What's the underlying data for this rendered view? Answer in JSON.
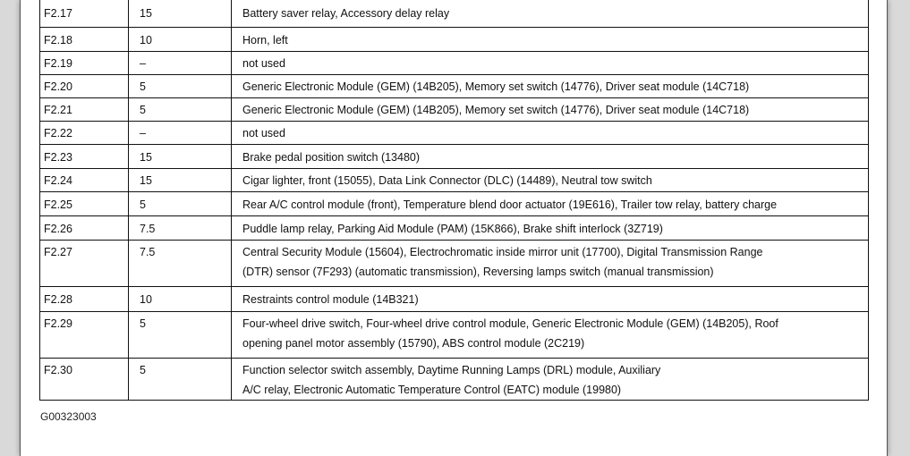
{
  "rows": [
    {
      "fuse": "F2.17",
      "amps": "15",
      "circuits": [
        "Battery saver relay, Accessory delay relay"
      ]
    },
    {
      "fuse": "F2.18",
      "amps": "10",
      "circuits": [
        "Horn, left"
      ]
    },
    {
      "fuse": "F2.19",
      "amps": "–",
      "circuits": [
        "not used"
      ]
    },
    {
      "fuse": "F2.20",
      "amps": "5",
      "circuits": [
        "Generic Electronic Module (GEM) (14B205), Memory set switch (14776), Driver seat  module (14C718)"
      ]
    },
    {
      "fuse": "F2.21",
      "amps": "5",
      "circuits": [
        "Generic Electronic Module (GEM) (14B205), Memory set switch (14776), Driver seat  module (14C718)"
      ]
    },
    {
      "fuse": "F2.22",
      "amps": "–",
      "circuits": [
        "not used"
      ]
    },
    {
      "fuse": "F2.23",
      "amps": "15",
      "circuits": [
        "Brake pedal position switch (13480)"
      ]
    },
    {
      "fuse": "F2.24",
      "amps": "15",
      "circuits": [
        "Cigar lighter, front (15055), Data Link Connector (DLC) (14489), Neutral tow switch"
      ]
    },
    {
      "fuse": "F2.25",
      "amps": "5",
      "circuits": [
        "Rear A/C control module (front), Temperature blend door actuator (19E616), Trailer  tow relay, battery charge"
      ]
    },
    {
      "fuse": "F2.26",
      "amps": "7.5",
      "circuits": [
        "Puddle lamp relay, Parking Aid Module (PAM) (15K866), Brake shift interlock (3Z719)"
      ]
    },
    {
      "fuse": "F2.27",
      "amps": "7.5",
      "circuits": [
        "Central Security Module (15604), Electrochromatic inside mirror unit (17700), Digital  Transmission Range",
        "(DTR) sensor (7F293) (automatic transmission), Reversing  lamps switch (manual transmission)"
      ]
    },
    {
      "fuse": "F2.28",
      "amps": "10",
      "circuits": [
        "Restraints control module (14B321)"
      ]
    },
    {
      "fuse": "F2.29",
      "amps": "5",
      "circuits": [
        "Four-wheel drive switch, Four-wheel drive control module, Generic Electronic Module (GEM) (14B205), Roof",
        "opening panel motor assembly (15790), ABS control  module (2C219)"
      ]
    },
    {
      "fuse": "F2.30",
      "amps": "5",
      "circuits": [
        "Function selector switch assembly, Daytime Running Lamps (DRL) module, Auxiliary",
        "A/C relay, Electronic Automatic Temperature Control (EATC) module (19980)"
      ]
    }
  ],
  "caption": "G00323003"
}
